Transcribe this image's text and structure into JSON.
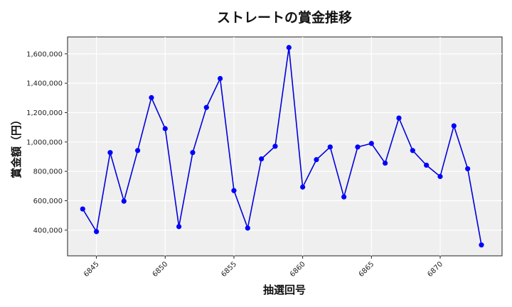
{
  "chart_data": {
    "type": "line",
    "title": "ストレートの賞金推移",
    "xlabel": "抽選回号",
    "ylabel": "賞金額（円）",
    "x": [
      6844,
      6845,
      6846,
      6847,
      6848,
      6849,
      6850,
      6851,
      6852,
      6853,
      6854,
      6855,
      6856,
      6857,
      6858,
      6859,
      6860,
      6861,
      6862,
      6863,
      6864,
      6865,
      6866,
      6867,
      6868,
      6869,
      6870,
      6871,
      6872,
      6873
    ],
    "series": [
      {
        "name": "ストレート",
        "color": "#0000dd",
        "values": [
          544000,
          390000,
          928000,
          597000,
          942000,
          1302000,
          1091000,
          424000,
          928000,
          1235000,
          1432000,
          669000,
          414000,
          885000,
          971000,
          1643000,
          693000,
          880000,
          966000,
          626000,
          966000,
          990000,
          856000,
          1163000,
          942000,
          842000,
          765000,
          1110000,
          818000,
          299000
        ]
      }
    ],
    "xticks": [
      6845,
      6850,
      6855,
      6860,
      6865,
      6870
    ],
    "xtick_labels": [
      "6845",
      "6850",
      "6855",
      "6860",
      "6865",
      "6870"
    ],
    "yticks": [
      400000,
      600000,
      800000,
      1000000,
      1200000,
      1400000,
      1600000
    ],
    "ytick_labels": [
      "400,000",
      "600,000",
      "800,000",
      "1,000,000",
      "1,200,000",
      "1,400,000",
      "1,600,000"
    ],
    "xlim": [
      6842.9,
      6874.5
    ],
    "ylim": [
      225000,
      1715000
    ],
    "grid": true,
    "legend": null,
    "background": "#efefef",
    "line_color": "#0000dd",
    "marker_color": "#0000ff"
  }
}
